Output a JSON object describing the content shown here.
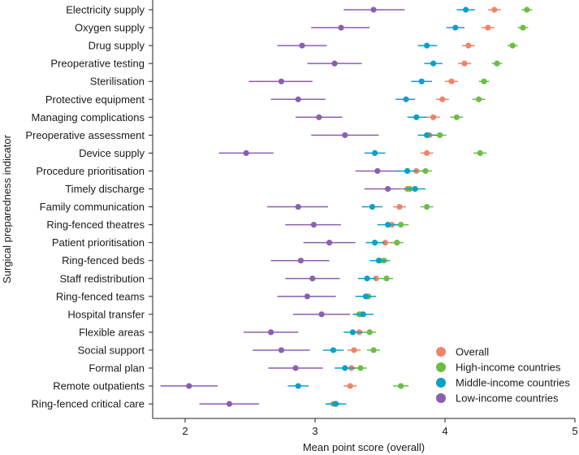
{
  "chart_data": {
    "type": "dot-interval",
    "xlabel": "Mean point score (overall)",
    "ylabel": "Surgical preparedness indicator",
    "xlim": [
      1.75,
      5.0
    ],
    "xticks": [
      "2",
      "3",
      "4",
      "5"
    ],
    "xtick_values": [
      2,
      3,
      4,
      5
    ],
    "legend_position": "bottom-right",
    "colors": {
      "overall": "#f0846a",
      "high": "#6cbd45",
      "middle": "#0aa0c8",
      "low": "#8a5fb0"
    },
    "categories": [
      "Electricity  supply",
      "Oxygen supply",
      "Drug supply",
      "Preoperative testing",
      "Sterilisation",
      "Protective equipment",
      "Managing complications",
      "Preoperative assessment",
      "Device supply",
      "Procedure prioritisation",
      "Timely discharge",
      "Family communication",
      "Ring-fenced theatres",
      "Patient prioritisation",
      "Ring-fenced beds",
      "Staff redistribution",
      "Ring-fenced teams",
      "Hospital transfer",
      "Flexible areas",
      "Social support",
      "Formal plan",
      "Remote outpatients",
      "Ring-fenced critical care"
    ],
    "series": [
      {
        "key": "low",
        "name": "Low-income countries",
        "values": [
          3.45,
          3.2,
          2.9,
          3.15,
          2.74,
          2.87,
          3.03,
          3.23,
          2.47,
          3.48,
          3.56,
          2.87,
          2.99,
          3.11,
          2.89,
          2.98,
          2.94,
          3.05,
          2.66,
          2.74,
          2.85,
          2.03,
          2.34
        ],
        "ci_low": [
          3.22,
          2.97,
          2.71,
          2.94,
          2.49,
          2.66,
          2.85,
          2.97,
          2.26,
          3.31,
          3.38,
          2.63,
          2.77,
          2.91,
          2.66,
          2.77,
          2.71,
          2.83,
          2.45,
          2.52,
          2.64,
          1.81,
          2.11
        ],
        "ci_high": [
          3.69,
          3.42,
          3.09,
          3.36,
          2.98,
          3.08,
          3.21,
          3.49,
          2.68,
          3.65,
          3.74,
          3.1,
          3.2,
          3.31,
          3.11,
          3.19,
          3.16,
          3.27,
          2.87,
          2.96,
          3.06,
          2.25,
          2.57
        ]
      },
      {
        "key": "overall",
        "name": "Overall",
        "values": [
          4.38,
          4.33,
          4.18,
          4.15,
          4.05,
          3.98,
          3.91,
          3.88,
          3.86,
          3.78,
          3.71,
          3.65,
          3.59,
          3.54,
          3.5,
          3.47,
          3.4,
          3.35,
          3.34,
          3.3,
          3.28,
          3.27,
          3.14
        ],
        "ci_low": [
          4.33,
          4.28,
          4.13,
          4.1,
          4.0,
          3.93,
          3.86,
          3.83,
          3.81,
          3.73,
          3.66,
          3.6,
          3.54,
          3.49,
          3.45,
          3.42,
          3.35,
          3.3,
          3.29,
          3.25,
          3.23,
          3.22,
          3.09
        ],
        "ci_high": [
          4.43,
          4.38,
          4.23,
          4.2,
          4.1,
          4.03,
          3.96,
          3.93,
          3.91,
          3.83,
          3.76,
          3.7,
          3.64,
          3.59,
          3.55,
          3.52,
          3.45,
          3.4,
          3.39,
          3.35,
          3.33,
          3.32,
          3.19
        ]
      },
      {
        "key": "high",
        "name": "High-income countries",
        "values": [
          4.63,
          4.6,
          4.52,
          4.4,
          4.3,
          4.26,
          4.09,
          3.96,
          4.27,
          3.85,
          3.73,
          3.86,
          3.66,
          3.63,
          3.53,
          3.55,
          3.41,
          3.34,
          3.42,
          3.45,
          3.35,
          3.66,
          3.15
        ],
        "ci_low": [
          4.59,
          4.56,
          4.48,
          4.36,
          4.26,
          4.21,
          4.04,
          3.91,
          4.22,
          3.8,
          3.67,
          3.81,
          3.6,
          3.58,
          3.48,
          3.5,
          3.36,
          3.29,
          3.37,
          3.4,
          3.3,
          3.6,
          3.1
        ],
        "ci_high": [
          4.67,
          4.64,
          4.56,
          4.44,
          4.34,
          4.31,
          4.14,
          4.01,
          4.32,
          3.9,
          3.79,
          3.91,
          3.72,
          3.68,
          3.58,
          3.6,
          3.46,
          3.39,
          3.47,
          3.5,
          3.4,
          3.72,
          3.2
        ]
      },
      {
        "key": "middle",
        "name": "Middle-income countries",
        "values": [
          4.16,
          4.08,
          3.86,
          3.91,
          3.82,
          3.7,
          3.78,
          3.86,
          3.46,
          3.71,
          3.77,
          3.44,
          3.56,
          3.46,
          3.49,
          3.4,
          3.39,
          3.37,
          3.29,
          3.14,
          3.23,
          2.87,
          3.16
        ],
        "ci_low": [
          4.09,
          4.01,
          3.79,
          3.84,
          3.74,
          3.62,
          3.71,
          3.79,
          3.38,
          3.63,
          3.69,
          3.36,
          3.48,
          3.39,
          3.42,
          3.33,
          3.31,
          3.29,
          3.22,
          3.06,
          3.15,
          2.79,
          3.08
        ],
        "ci_high": [
          4.23,
          4.15,
          3.94,
          3.98,
          3.9,
          3.77,
          3.86,
          3.94,
          3.54,
          3.79,
          3.85,
          3.52,
          3.64,
          3.54,
          3.56,
          3.47,
          3.47,
          3.45,
          3.37,
          3.22,
          3.31,
          2.95,
          3.24
        ]
      }
    ],
    "legend": [
      {
        "key": "overall",
        "label": "Overall"
      },
      {
        "key": "high",
        "label": "High-income countries"
      },
      {
        "key": "middle",
        "label": "Middle-income countries"
      },
      {
        "key": "low",
        "label": "Low-income countries"
      }
    ]
  }
}
